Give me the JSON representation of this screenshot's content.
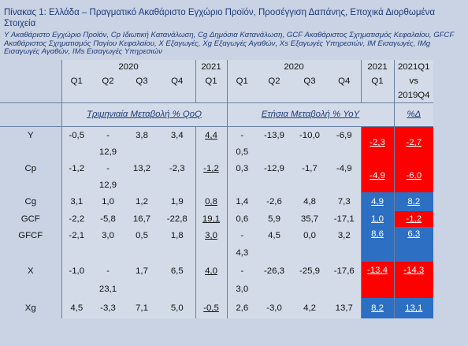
{
  "title": "Πίνακας 1: Ελλάδα – Πραγματικό Ακαθάριστο Εγχώριο Προϊόν, Προσέγγιση Δαπάνης, Εποχικά Διορθωμένα Στοιχεία",
  "legend": "Y Ακαθάριστο Εγχώριο Προϊόν, Cp Ιδιωτική Κατανάλωση, Cg Δημόσια Κατανάλωση, GCF Ακαθάριστος Σχηματισμός Κεφαλαίου, GFCF Ακαθάριστος Σχηματισμός Παγίου Κεφαλαίου, X Εξαγωγές, Xg Εξαγωγές Αγαθών, Xs Εξαγωγές Υπηρεσιών, IM Εισαγωγές, IMg Εισαγωγές Αγαθών, IMs Εισαγωγές Υπηρεσιών",
  "header": {
    "year_2020_a": "2020",
    "year_2021_a": "2021",
    "year_2020_b": "2020",
    "year_2021_b": "2021",
    "compare_line1": "2021Q1",
    "compare_line2": "vs",
    "compare_line3": "2019Q4",
    "quarters": [
      "Q1",
      "Q2",
      "Q3",
      "Q4",
      "Q1",
      "Q1",
      "Q2",
      "Q3",
      "Q4",
      "Q1"
    ]
  },
  "sections": {
    "qoq": "Τριμηνιαία Μεταβολή % QoQ",
    "yoy": "Ετήσια Μεταβολή % YoY",
    "pct": "%Δ"
  },
  "rows": [
    {
      "label": "Y",
      "q": [
        "-0,5",
        "-",
        "3,8",
        "3,4",
        "4,4"
      ],
      "q2": [
        "",
        "12,9",
        "",
        "",
        ""
      ],
      "y": [
        "-",
        "-13,9",
        "-10,0",
        "-6,9",
        "-2,3"
      ],
      "y2": [
        "0,5",
        "",
        "",
        "",
        ""
      ],
      "d": "-2,7"
    },
    {
      "label": "Cp",
      "q": [
        "-1,2",
        "-",
        "13,2",
        "-2,3",
        "-1,2"
      ],
      "q2": [
        "",
        "12,9",
        "",
        "",
        ""
      ],
      "y": [
        "0,3",
        "-12,9",
        "-1,7",
        "-4,9",
        "-4,9"
      ],
      "y2": [
        "",
        "",
        "",
        "",
        ""
      ],
      "d": "-6,0"
    },
    {
      "label": "Cg",
      "q": [
        "3,1",
        "1,0",
        "1,2",
        "1,9",
        "0,8"
      ],
      "y": [
        "1,4",
        "-2,6",
        "4,8",
        "7,3",
        "4,9"
      ],
      "d": "8,2"
    },
    {
      "label": "GCF",
      "q": [
        "-2,2",
        "-5,8",
        "16,7",
        "-22,8",
        "19,1"
      ],
      "y": [
        "0,6",
        "5,9",
        "35,7",
        "-17,1",
        "1,0"
      ],
      "d": "-1,2"
    },
    {
      "label": "GFCF",
      "q": [
        "-2,1",
        "3,0",
        "0,5",
        "1,8",
        "3,0"
      ],
      "q2": [
        "",
        "",
        "",
        "",
        ""
      ],
      "y": [
        "-",
        "4,5",
        "0,0",
        "3,2",
        "8,6"
      ],
      "y2": [
        "4,3",
        "",
        "",
        "",
        ""
      ],
      "d": "6,3"
    },
    {
      "label": "X",
      "q": [
        "-1,0",
        "-",
        "1,7",
        "6,5",
        "4,0"
      ],
      "q2": [
        "",
        "23,1",
        "",
        "",
        ""
      ],
      "y": [
        "-",
        "-26,3",
        "-25,9",
        "-17,6",
        "-13,4"
      ],
      "y2": [
        "3,0",
        "",
        "",
        "",
        ""
      ],
      "d": "-14,3"
    },
    {
      "label": "Xg",
      "q": [
        "4,5",
        "-3,3",
        "7,1",
        "5,0",
        "-0,5"
      ],
      "y": [
        "2,6",
        "-3,0",
        "4,2",
        "13,7",
        "8,2"
      ],
      "d": "13,1"
    }
  ],
  "colors": {
    "negative_highlight": "#ff0000",
    "positive_highlight": "#2d6fc3",
    "text": "#1f3a7a"
  }
}
